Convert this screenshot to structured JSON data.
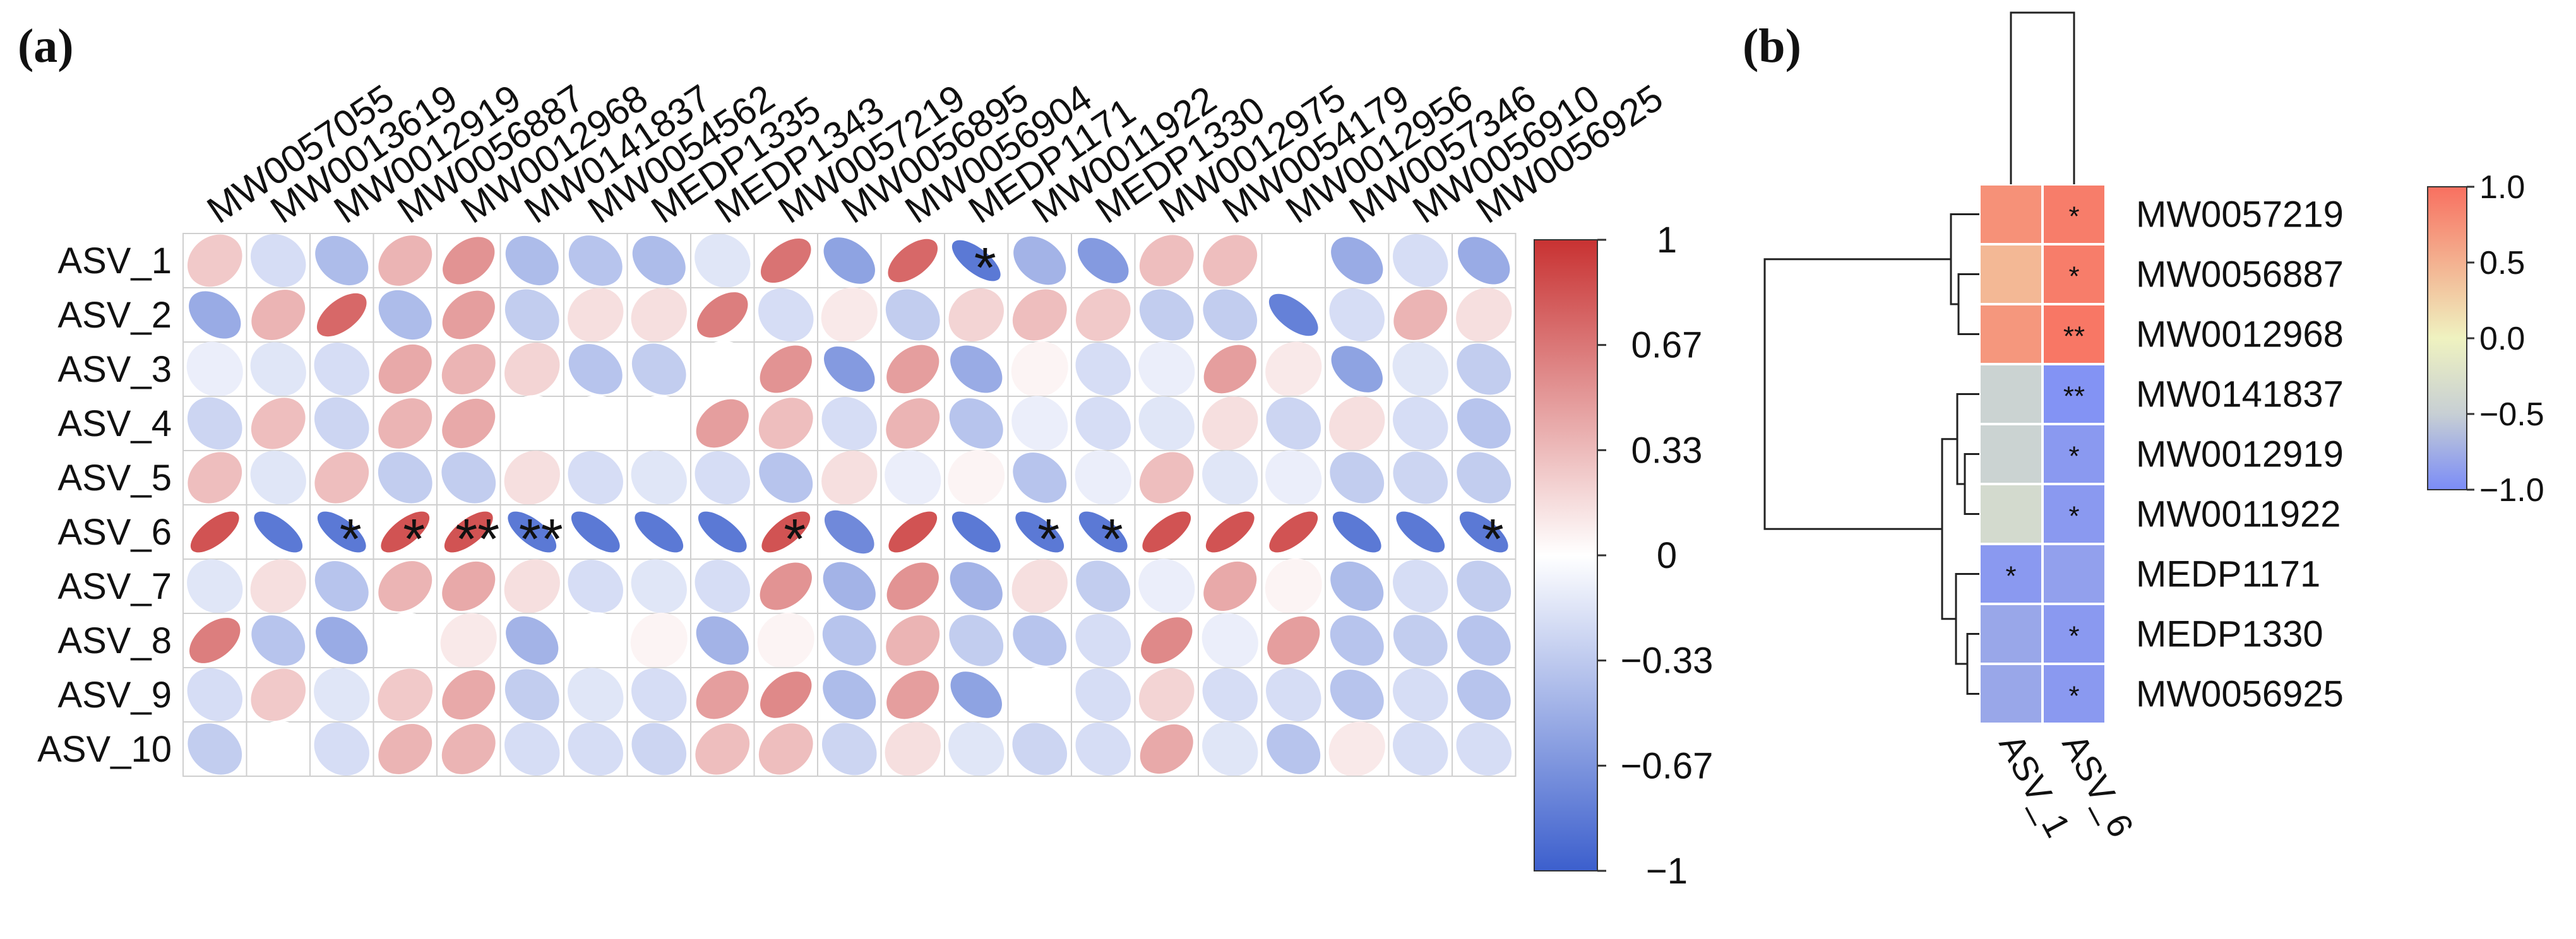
{
  "colors": {
    "negative": "#3c5fcd",
    "positive": "#c83232",
    "neutral": "#ffffff",
    "heatmap_low": "#7b8cf7",
    "heatmap_mid_neg": "#c7cfd4",
    "heatmap_mid": "#eff2c0",
    "heatmap_high": "#f87060",
    "grid": "#cfcfcf",
    "dendrogram": "#222222"
  },
  "chart_data": [
    {
      "panel": "(a)",
      "type": "heatmap",
      "subtype": "correlation-ellipse",
      "columns": [
        "MW0057055",
        "MW0013619",
        "MW0012919",
        "MW0056887",
        "MW0012968",
        "MW0141837",
        "MW0054562",
        "MEDP1335",
        "MEDP1343",
        "MW0057219",
        "MW0056895",
        "MW0056904",
        "MEDP1171",
        "MW0011922",
        "MEDP1330",
        "MW0012975",
        "MW0054179",
        "MW0012956",
        "MW0057346",
        "MW0056910",
        "MW0056925"
      ],
      "rows": [
        "ASV_1",
        "ASV_2",
        "ASV_3",
        "ASV_4",
        "ASV_5",
        "ASV_6",
        "ASV_7",
        "ASV_8",
        "ASV_9",
        "ASV_10"
      ],
      "values": [
        [
          0.25,
          -0.2,
          -0.4,
          0.35,
          0.5,
          -0.4,
          -0.35,
          -0.4,
          -0.15,
          0.65,
          -0.55,
          0.7,
          -0.8,
          -0.45,
          -0.6,
          0.3,
          0.3,
          0.0,
          -0.5,
          -0.2,
          -0.5
        ],
        [
          -0.5,
          0.35,
          0.7,
          -0.4,
          0.45,
          -0.3,
          0.15,
          0.15,
          0.6,
          -0.2,
          0.1,
          -0.3,
          0.2,
          0.3,
          0.25,
          -0.3,
          -0.3,
          -0.75,
          -0.2,
          0.35,
          0.15
        ],
        [
          -0.1,
          -0.15,
          -0.2,
          0.4,
          0.35,
          0.2,
          -0.35,
          -0.3,
          0.0,
          0.5,
          -0.6,
          0.45,
          -0.5,
          0.05,
          -0.2,
          -0.1,
          0.45,
          0.1,
          -0.55,
          -0.15,
          -0.3
        ],
        [
          -0.25,
          0.3,
          -0.25,
          0.35,
          0.4,
          0.0,
          0.0,
          0.0,
          0.45,
          0.3,
          -0.2,
          0.35,
          -0.35,
          -0.1,
          -0.2,
          -0.15,
          0.15,
          -0.25,
          0.15,
          -0.2,
          -0.35
        ],
        [
          0.3,
          -0.15,
          0.3,
          -0.3,
          -0.3,
          0.15,
          -0.2,
          -0.15,
          -0.2,
          -0.35,
          0.15,
          -0.1,
          0.05,
          -0.35,
          -0.1,
          0.3,
          -0.15,
          -0.1,
          -0.3,
          -0.25,
          -0.3
        ],
        [
          0.8,
          -0.8,
          -0.8,
          0.8,
          0.8,
          -0.8,
          -0.8,
          -0.8,
          -0.8,
          0.8,
          -0.7,
          0.8,
          -0.8,
          -0.8,
          -0.8,
          0.8,
          0.8,
          0.8,
          -0.8,
          -0.8,
          -0.8
        ],
        [
          -0.15,
          0.15,
          -0.35,
          0.35,
          0.4,
          0.15,
          -0.2,
          -0.15,
          -0.2,
          0.5,
          -0.45,
          0.5,
          -0.45,
          0.15,
          -0.3,
          -0.1,
          0.4,
          0.05,
          -0.4,
          -0.2,
          -0.3
        ],
        [
          0.6,
          -0.35,
          -0.5,
          0.0,
          0.1,
          -0.45,
          0.0,
          0.05,
          -0.45,
          0.05,
          -0.35,
          0.35,
          -0.3,
          -0.35,
          -0.2,
          0.55,
          -0.1,
          0.45,
          -0.35,
          -0.3,
          -0.35
        ],
        [
          -0.2,
          0.25,
          -0.15,
          0.25,
          0.4,
          -0.3,
          -0.15,
          -0.2,
          0.45,
          0.55,
          -0.4,
          0.45,
          -0.55,
          0.0,
          -0.2,
          0.2,
          -0.2,
          -0.2,
          -0.35,
          -0.2,
          -0.35
        ],
        [
          -0.3,
          0.0,
          -0.2,
          0.35,
          0.35,
          -0.2,
          -0.2,
          -0.25,
          0.3,
          0.3,
          -0.25,
          0.15,
          -0.15,
          -0.25,
          -0.2,
          0.4,
          -0.15,
          -0.35,
          0.1,
          -0.2,
          -0.2
        ]
      ],
      "significance": [
        {
          "row": "ASV_1",
          "col": "MEDP1171",
          "mark": "*"
        },
        {
          "row": "ASV_6",
          "col": "MW0012919",
          "mark": "*"
        },
        {
          "row": "ASV_6",
          "col": "MW0056887",
          "mark": "*"
        },
        {
          "row": "ASV_6",
          "col": "MW0012968",
          "mark": "**"
        },
        {
          "row": "ASV_6",
          "col": "MW0141837",
          "mark": "**"
        },
        {
          "row": "ASV_6",
          "col": "MW0057219",
          "mark": "*"
        },
        {
          "row": "ASV_6",
          "col": "MW0011922",
          "mark": "*"
        },
        {
          "row": "ASV_6",
          "col": "MEDP1330",
          "mark": "*"
        },
        {
          "row": "ASV_6",
          "col": "MW0056925",
          "mark": "*"
        }
      ],
      "colorbar": {
        "min": -1,
        "max": 1,
        "ticks": [
          "1",
          "0.67",
          "0.33",
          "0",
          "−0.33",
          "−0.67",
          "−1"
        ]
      }
    },
    {
      "panel": "(b)",
      "type": "heatmap",
      "subtype": "clustered",
      "columns": [
        "ASV_1",
        "ASV_6"
      ],
      "rows": [
        "MW0057219",
        "MW0056887",
        "MW0012968",
        "MW0141837",
        "MW0012919",
        "MW0011922",
        "MEDP1171",
        "MEDP1330",
        "MW0056925"
      ],
      "values": [
        [
          0.75,
          0.9
        ],
        [
          0.45,
          0.9
        ],
        [
          0.7,
          0.95
        ],
        [
          -0.45,
          -0.95
        ],
        [
          -0.45,
          -0.9
        ],
        [
          -0.35,
          -0.9
        ],
        [
          -0.9,
          -0.85
        ],
        [
          -0.8,
          -0.9
        ],
        [
          -0.8,
          -0.9
        ]
      ],
      "stars": [
        [
          "",
          "*"
        ],
        [
          "",
          "*"
        ],
        [
          "",
          "**"
        ],
        [
          "",
          "**"
        ],
        [
          "",
          "*"
        ],
        [
          "",
          "*"
        ],
        [
          "*",
          ""
        ],
        [
          "",
          "*"
        ],
        [
          "",
          "*"
        ]
      ],
      "colorbar": {
        "min": -1.0,
        "max": 1.0,
        "ticks": [
          "1.0",
          "0.5",
          "0.0",
          "−0.5",
          "−1.0"
        ]
      }
    }
  ]
}
